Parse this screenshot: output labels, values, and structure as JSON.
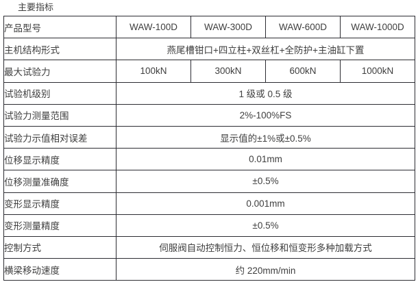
{
  "page": {
    "title": "主要指标"
  },
  "colors": {
    "border": "#2b2b31",
    "text": "#3e3e3e",
    "background": "#ffffff"
  },
  "spec_table": {
    "rows": [
      {
        "label": "产品型号",
        "values": [
          "WAW-100D",
          "WAW-300D",
          "WAW-600D",
          "WAW-1000D"
        ]
      },
      {
        "label": "主机结构形式",
        "value": "燕尾槽钳口+四立柱+双丝杠+全防护+主油缸下置"
      },
      {
        "label": "最大试验力",
        "values": [
          "100kN",
          "300kN",
          "600kN",
          "1000kN"
        ]
      },
      {
        "label": "试验机级别",
        "value": "1 级或 0.5 级"
      },
      {
        "label": "试验力测量范围",
        "value": "2%-100%FS"
      },
      {
        "label": "试验力示值相对误差",
        "value": "显示值的±1%或±0.5%"
      },
      {
        "label": "位移显示精度",
        "value": "0.01mm"
      },
      {
        "label": "位移测量准确度",
        "value": "±0.5%"
      },
      {
        "label": "变形显示精度",
        "value": "0.001mm"
      },
      {
        "label": "变形测量精度",
        "value": "±0.5%"
      },
      {
        "label": "控制方式",
        "value": "伺服阀自动控制恒力、恒位移和恒变形多种加载方式"
      },
      {
        "label": "横梁移动速度",
        "value": "约 220mm/min"
      }
    ]
  }
}
